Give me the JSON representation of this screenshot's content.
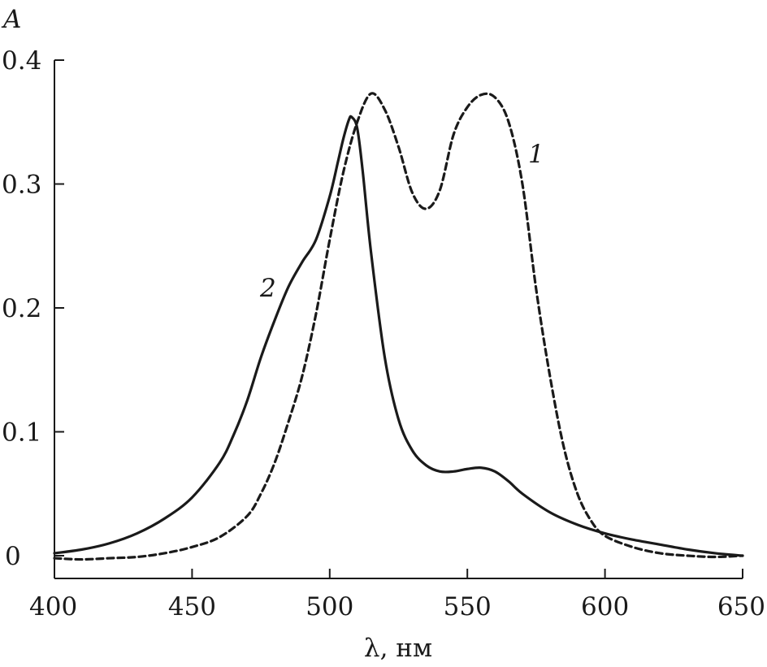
{
  "chart_data": {
    "type": "line",
    "title": "",
    "xlabel": "λ, нм",
    "ylabel": "A",
    "xlim": [
      400,
      650
    ],
    "ylim": [
      -0.02,
      0.4
    ],
    "xticks": [
      400,
      450,
      500,
      550,
      600,
      650
    ],
    "xtick_labels": [
      "400",
      "450",
      "500",
      "550",
      "600",
      "650"
    ],
    "yticks": [
      0,
      0.1,
      0.2,
      0.3,
      0.4
    ],
    "ytick_labels": [
      "0",
      "0.1",
      "0.2",
      "0.3",
      "0.4"
    ],
    "grid": false,
    "legend": "none",
    "series": [
      {
        "label": "1",
        "style": "dashed",
        "color": "#1a1a1a",
        "x": [
          400,
          410,
          420,
          430,
          440,
          450,
          460,
          470,
          475,
          480,
          485,
          490,
          495,
          500,
          505,
          510,
          515,
          520,
          525,
          530,
          535,
          540,
          545,
          550,
          555,
          560,
          565,
          570,
          575,
          580,
          585,
          590,
          595,
          600,
          610,
          620,
          630,
          640,
          650
        ],
        "y": [
          -0.002,
          -0.003,
          -0.002,
          -0.001,
          0.002,
          0.007,
          0.015,
          0.032,
          0.05,
          0.075,
          0.108,
          0.145,
          0.195,
          0.255,
          0.31,
          0.35,
          0.373,
          0.36,
          0.33,
          0.293,
          0.28,
          0.295,
          0.34,
          0.362,
          0.372,
          0.37,
          0.35,
          0.3,
          0.215,
          0.145,
          0.088,
          0.05,
          0.028,
          0.016,
          0.007,
          0.002,
          0.0,
          -0.001,
          0.0
        ]
      },
      {
        "label": "2",
        "style": "solid",
        "color": "#1a1a1a",
        "x": [
          400,
          410,
          420,
          430,
          440,
          450,
          460,
          465,
          470,
          475,
          480,
          485,
          490,
          495,
          500,
          503,
          505,
          507,
          508,
          510,
          512,
          515,
          520,
          525,
          530,
          535,
          540,
          545,
          550,
          555,
          560,
          565,
          570,
          580,
          590,
          600,
          610,
          620,
          630,
          640,
          650
        ],
        "y": [
          0.002,
          0.005,
          0.01,
          0.018,
          0.03,
          0.047,
          0.075,
          0.097,
          0.125,
          0.16,
          0.19,
          0.217,
          0.237,
          0.255,
          0.29,
          0.318,
          0.337,
          0.352,
          0.354,
          0.345,
          0.31,
          0.245,
          0.16,
          0.11,
          0.085,
          0.073,
          0.068,
          0.068,
          0.07,
          0.071,
          0.068,
          0.06,
          0.05,
          0.035,
          0.025,
          0.018,
          0.013,
          0.009,
          0.005,
          0.002,
          0.0
        ]
      }
    ]
  }
}
